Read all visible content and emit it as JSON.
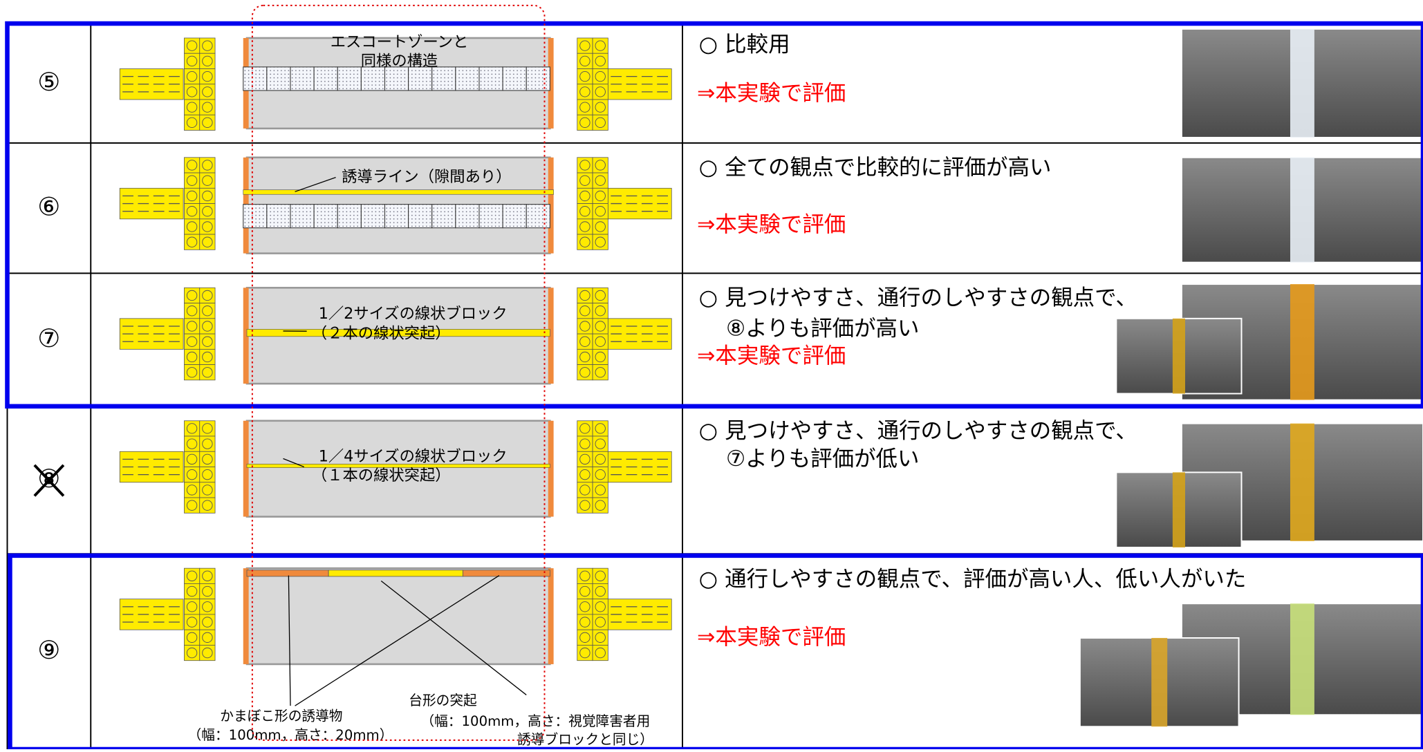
{
  "rows": [
    {
      "number": "⑤",
      "diagram_labels": [
        "エスコートゾーンと",
        "同様の構造"
      ],
      "comment_lines": [
        "○ 比較用"
      ],
      "evaluation": "⇒本実験で評価"
    },
    {
      "number": "⑥",
      "diagram_labels": [
        "誘導ライン（隙間あり）"
      ],
      "comment_lines": [
        "○ 全ての観点で比較的に評価が高い"
      ],
      "evaluation": "⇒本実験で評価"
    },
    {
      "number": "⑦",
      "diagram_labels": [
        "1／2サイズの線状ブロック",
        "（２本の線状突起）"
      ],
      "comment_lines": [
        "○ 見つけやすさ、通行のしやすさの観点で、",
        "⑧よりも評価が高い"
      ],
      "evaluation": "⇒本実験で評価"
    },
    {
      "number": "⑧",
      "diagram_labels": [
        "1／4サイズの線状ブロック",
        "（１本の線状突起）"
      ],
      "comment_lines": [
        "○ 見つけやすさ、通行のしやすさの観点で、",
        "⑦よりも評価が低い"
      ]
    },
    {
      "number": "⑨",
      "diagram_labels": [
        "かまぼこ形の誘導物",
        "（幅：100mm，高さ：20mm）",
        "台形の突起",
        "（幅：100mm，高さ：視覚障害者用",
        "誘導ブロックと同じ）"
      ],
      "comment_lines": [
        "○ 通行しやすさの観点で、評価が高い人、低い人がいた"
      ],
      "evaluation": "⇒本実験で評価"
    }
  ]
}
